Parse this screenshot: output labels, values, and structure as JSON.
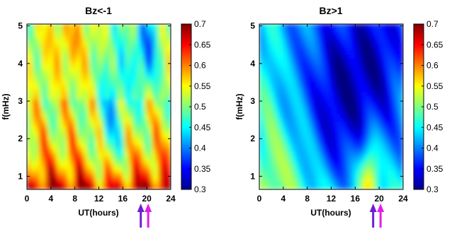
{
  "chart_data": [
    {
      "type": "heatmap",
      "title": "Bz<-1",
      "xlabel": "UT(hours)",
      "ylabel": "f(mHz)",
      "xlim": [
        0,
        24
      ],
      "ylim": [
        0.65,
        5.05
      ],
      "x_ticks": [
        "0",
        "4",
        "8",
        "12",
        "16",
        "20",
        "24"
      ],
      "y_ticks": [
        "1",
        "2",
        "3",
        "4",
        "5"
      ],
      "colorbar": {
        "min": 0.3,
        "max": 0.7,
        "ticks": [
          "0.3",
          "0.35",
          "0.4",
          "0.45",
          "0.5",
          "0.55",
          "0.6",
          "0.65",
          "0.7"
        ]
      },
      "arrows_ut": [
        19,
        20
      ],
      "arrow_colors": [
        "#6a1fd6",
        "#e01ee8"
      ],
      "grid": false
    },
    {
      "type": "heatmap",
      "title": "Bz>1",
      "xlabel": "UT(hours)",
      "ylabel": "f(mHz)",
      "xlim": [
        0,
        24
      ],
      "ylim": [
        0.65,
        5.05
      ],
      "x_ticks": [
        "0",
        "4",
        "8",
        "12",
        "16",
        "20",
        "24"
      ],
      "y_ticks": [
        "1",
        "2",
        "3",
        "4",
        "5"
      ],
      "colorbar": {
        "min": 0.3,
        "max": 0.7,
        "ticks": [
          "0.3",
          "0.35",
          "0.4",
          "0.45",
          "0.5",
          "0.55",
          "0.6",
          "0.65",
          "0.7"
        ]
      },
      "arrows_ut": [
        19,
        20
      ],
      "arrow_colors": [
        "#6a1fd6",
        "#e01ee8"
      ],
      "grid": false
    }
  ],
  "colormap": "jet"
}
